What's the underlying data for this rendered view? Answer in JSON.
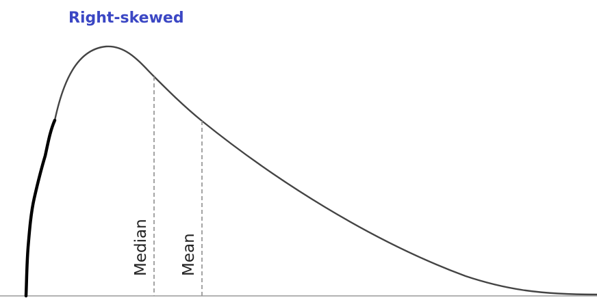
{
  "title": "Right-skewed",
  "labels": {
    "median": "Median",
    "mean": "Mean"
  },
  "colors": {
    "title": "#3b47c4",
    "curve": "#444444",
    "guides": "#999999",
    "baseline": "#999999",
    "left_stroke": "#000000"
  }
}
